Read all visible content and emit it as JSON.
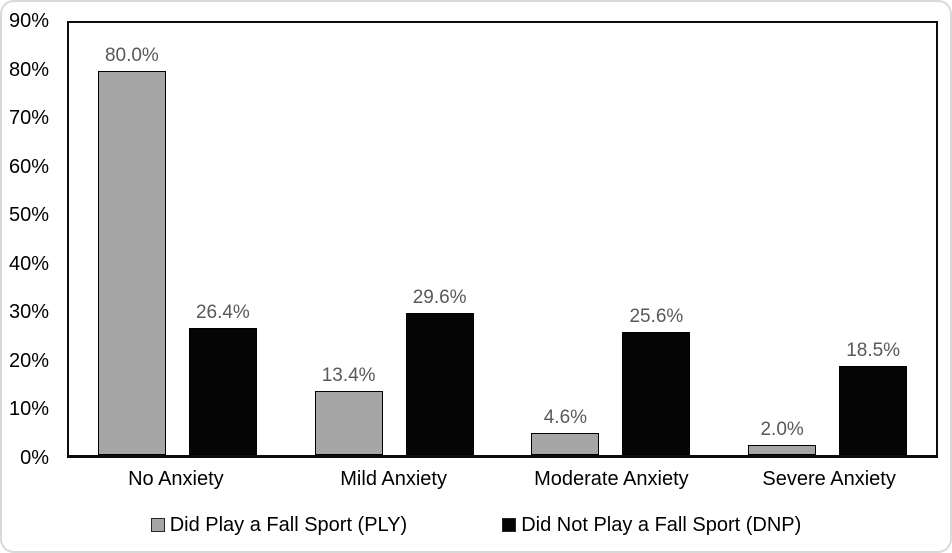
{
  "chart_data": {
    "type": "bar",
    "title": "",
    "xlabel": "",
    "ylabel": "",
    "categories": [
      "No Anxiety",
      "Mild Anxiety",
      "Moderate Anxiety",
      "Severe Anxiety"
    ],
    "series": [
      {
        "name": "Did Play a Fall Sport (PLY)",
        "color": "#a6a6a6",
        "border_color": "#000000",
        "values": [
          80.0,
          13.4,
          4.6,
          2.0
        ],
        "value_labels": [
          "80.0%",
          "13.4%",
          "4.6%",
          "2.0%"
        ]
      },
      {
        "name": "Did Not Play a Fall Sport (DNP)",
        "color": "#050505",
        "border_color": "#000000",
        "values": [
          26.4,
          29.6,
          25.6,
          18.5
        ],
        "value_labels": [
          "26.4%",
          "29.6%",
          "25.6%",
          "18.5%"
        ]
      }
    ],
    "y_axis": {
      "min": 0,
      "max": 90,
      "tick_step": 10,
      "tick_values": [
        0,
        10,
        20,
        30,
        40,
        50,
        60,
        70,
        80,
        90
      ],
      "tick_labels": [
        "0%",
        "10%",
        "20%",
        "30%",
        "40%",
        "50%",
        "60%",
        "70%",
        "80%",
        "90%"
      ]
    },
    "ylim": [
      0,
      90
    ],
    "grid": false,
    "legend_position": "bottom",
    "value_label_color": "#595959",
    "axis_text_color": "#000000"
  },
  "card": {
    "border_color": "#d9d9d9",
    "background": "#ffffff"
  }
}
